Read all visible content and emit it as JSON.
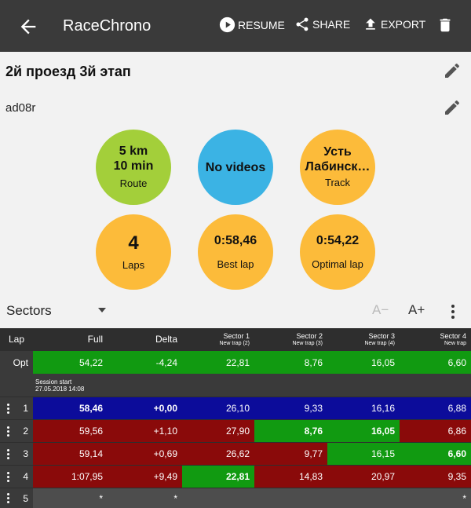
{
  "appbar": {
    "title": "RaceChrono",
    "resume_label": "RESUME",
    "share_label": "SHARE",
    "export_label": "EXPORT"
  },
  "session": {
    "title": "2й проезд 3й этап",
    "driver": "ad08r"
  },
  "stats": {
    "route_value_1": "5 km",
    "route_value_2": "10 min",
    "route_label": "Route",
    "videos_value": "No videos",
    "track_value_1": "Усть",
    "track_value_2": "Лабинск…",
    "track_label": "Track",
    "laps_value": "4",
    "laps_label": "Laps",
    "best_value": "0:58,46",
    "best_label": "Best lap",
    "optimal_value": "0:54,22",
    "optimal_label": "Optimal lap"
  },
  "toolbar": {
    "view_selector": "Sectors",
    "font_smaller": "A−",
    "font_larger": "A+"
  },
  "table": {
    "headers": {
      "lap": "Lap",
      "full": "Full",
      "delta": "Delta",
      "s1": "Sector 1",
      "s1_sub": "New trap (2)",
      "s2": "Sector 2",
      "s2_sub": "New trap (3)",
      "s3": "Sector 3",
      "s3_sub": "New trap (4)",
      "s4": "Sector 4",
      "s4_sub": "New trap"
    },
    "opt": {
      "lap": "Opt",
      "full": "54,22",
      "delta": "-4,24",
      "s1": "22,81",
      "s2": "8,76",
      "s3": "16,05",
      "s4": "6,60"
    },
    "session_start": {
      "label": "Session start",
      "date": "27.05.2018 14:08"
    },
    "rows": [
      {
        "lap": "1",
        "full": "58,46",
        "delta": "+0,00",
        "s1": "26,10",
        "s2": "9,33",
        "s3": "16,16",
        "s4": "6,88"
      },
      {
        "lap": "2",
        "full": "59,56",
        "delta": "+1,10",
        "s1": "27,90",
        "s2": "8,76",
        "s3": "16,05",
        "s4": "6,86"
      },
      {
        "lap": "3",
        "full": "59,14",
        "delta": "+0,69",
        "s1": "26,62",
        "s2": "9,77",
        "s3": "16,15",
        "s4": "6,60"
      },
      {
        "lap": "4",
        "full": "1:07,95",
        "delta": "+9,49",
        "s1": "22,81",
        "s2": "14,83",
        "s3": "20,97",
        "s4": "9,35"
      },
      {
        "lap": "5",
        "full": "*",
        "delta": "*",
        "s4": "*"
      }
    ]
  },
  "colors": {
    "appbar": "#3a3a3a",
    "route_circle": "#a3cf3a",
    "videos_circle": "#3bb3e4",
    "stat_circle": "#fcbb3a",
    "best_green": "#119a11",
    "slow_red": "#8a0a0a",
    "best_lap_blue": "#0c0c9a"
  }
}
